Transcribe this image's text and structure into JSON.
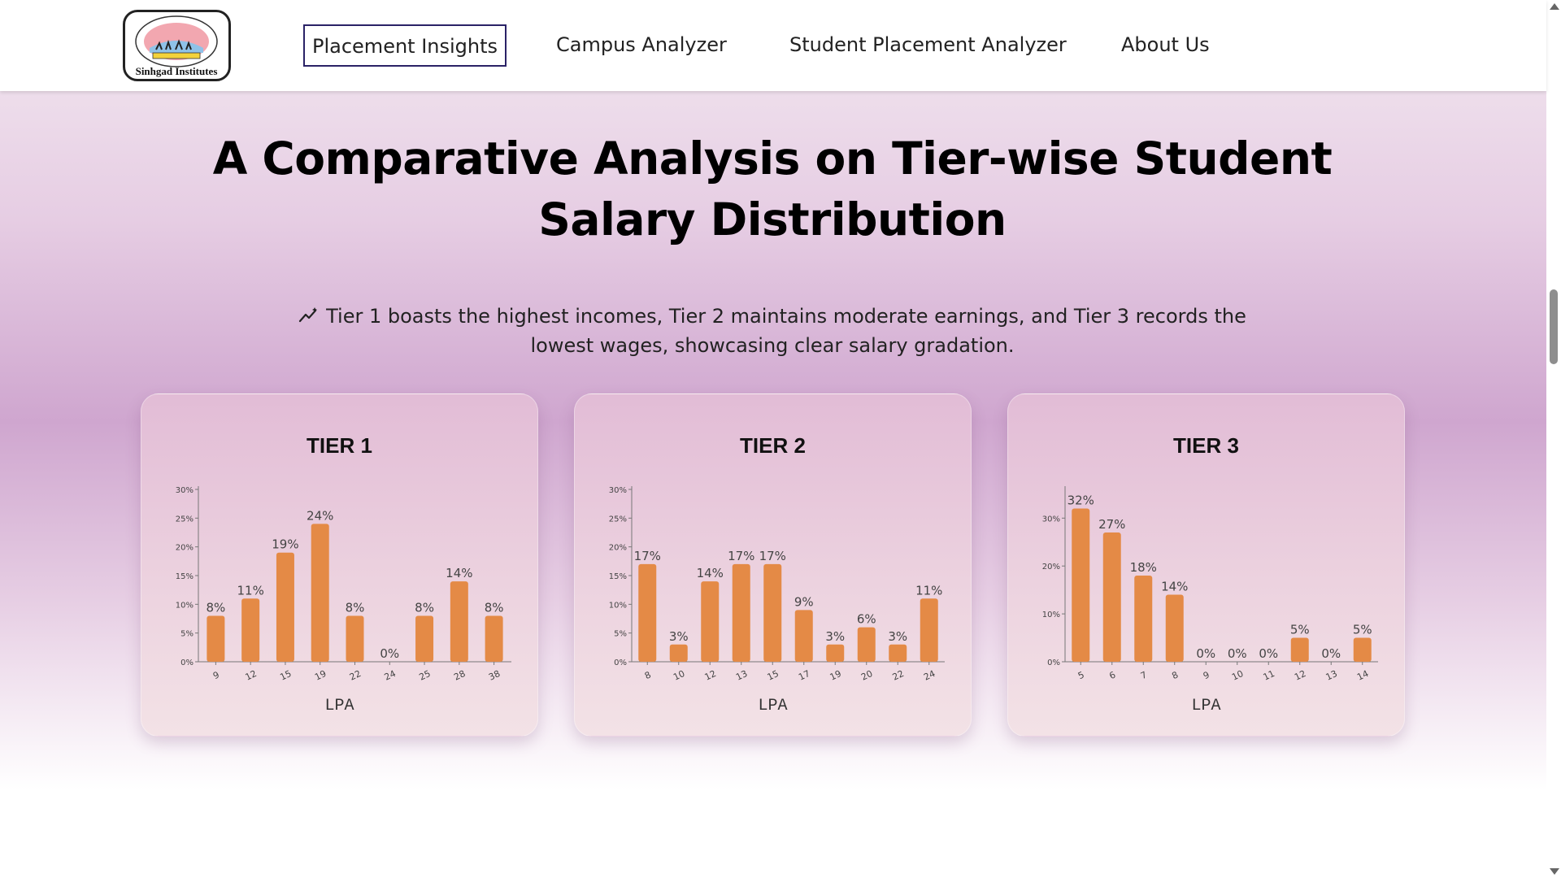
{
  "nav": {
    "logo_text": "Sinhgad Institutes",
    "items": [
      {
        "label": "Placement Insights",
        "active": true
      },
      {
        "label": "Campus Analyzer",
        "active": false
      },
      {
        "label": "Student Placement Analyzer",
        "active": false
      },
      {
        "label": "About Us",
        "active": false
      }
    ]
  },
  "page": {
    "title": "A Comparative Analysis on Tier-wise Student Salary Distribution",
    "insight_icon": "trend-sparkle-icon",
    "insight": "Tier 1 boasts the highest incomes, Tier 2 maintains moderate earnings, and Tier 3 records the lowest wages, showcasing clear salary gradation."
  },
  "colors": {
    "bar": "#e48a46",
    "nav_active_border": "#2a2266"
  },
  "chart_data": [
    {
      "type": "bar",
      "title": "TIER 1",
      "xlabel": "LPA",
      "ylabel": "",
      "categories": [
        "9",
        "12",
        "15",
        "19",
        "22",
        "24",
        "25",
        "28",
        "38"
      ],
      "values": [
        8,
        11,
        19,
        24,
        8,
        0,
        8,
        14,
        8
      ],
      "data_labels": [
        "8%",
        "11%",
        "19%",
        "24%",
        "8%",
        "0%",
        "8%",
        "14%",
        "8%"
      ],
      "ylim": [
        0,
        30
      ],
      "yticks": [
        0,
        5,
        10,
        15,
        20,
        25,
        30
      ],
      "ytick_labels": [
        "0%",
        "5%",
        "10%",
        "15%",
        "20%",
        "25%",
        "30%"
      ],
      "grid": false
    },
    {
      "type": "bar",
      "title": "TIER 2",
      "xlabel": "LPA",
      "ylabel": "",
      "categories": [
        "8",
        "10",
        "12",
        "13",
        "15",
        "17",
        "19",
        "20",
        "22",
        "24"
      ],
      "values": [
        17,
        3,
        14,
        17,
        17,
        9,
        3,
        6,
        3,
        11
      ],
      "data_labels": [
        "17%",
        "3%",
        "14%",
        "17%",
        "17%",
        "9%",
        "3%",
        "6%",
        "3%",
        "11%"
      ],
      "ylim": [
        0,
        30
      ],
      "yticks": [
        0,
        5,
        10,
        15,
        20,
        25,
        30
      ],
      "ytick_labels": [
        "0%",
        "5%",
        "10%",
        "15%",
        "20%",
        "25%",
        "30%"
      ],
      "grid": false
    },
    {
      "type": "bar",
      "title": "TIER 3",
      "xlabel": "LPA",
      "ylabel": "",
      "categories": [
        "5",
        "6",
        "7",
        "8",
        "9",
        "10",
        "11",
        "12",
        "13",
        "14"
      ],
      "values": [
        32,
        27,
        18,
        14,
        0,
        0,
        0,
        5,
        0,
        5
      ],
      "data_labels": [
        "32%",
        "27%",
        "18%",
        "14%",
        "0%",
        "0%",
        "0%",
        "5%",
        "0%",
        "5%"
      ],
      "ylim": [
        0,
        36
      ],
      "yticks": [
        0,
        10,
        20,
        30
      ],
      "ytick_labels": [
        "0%",
        "10%",
        "20%",
        "30%"
      ],
      "grid": false
    }
  ]
}
